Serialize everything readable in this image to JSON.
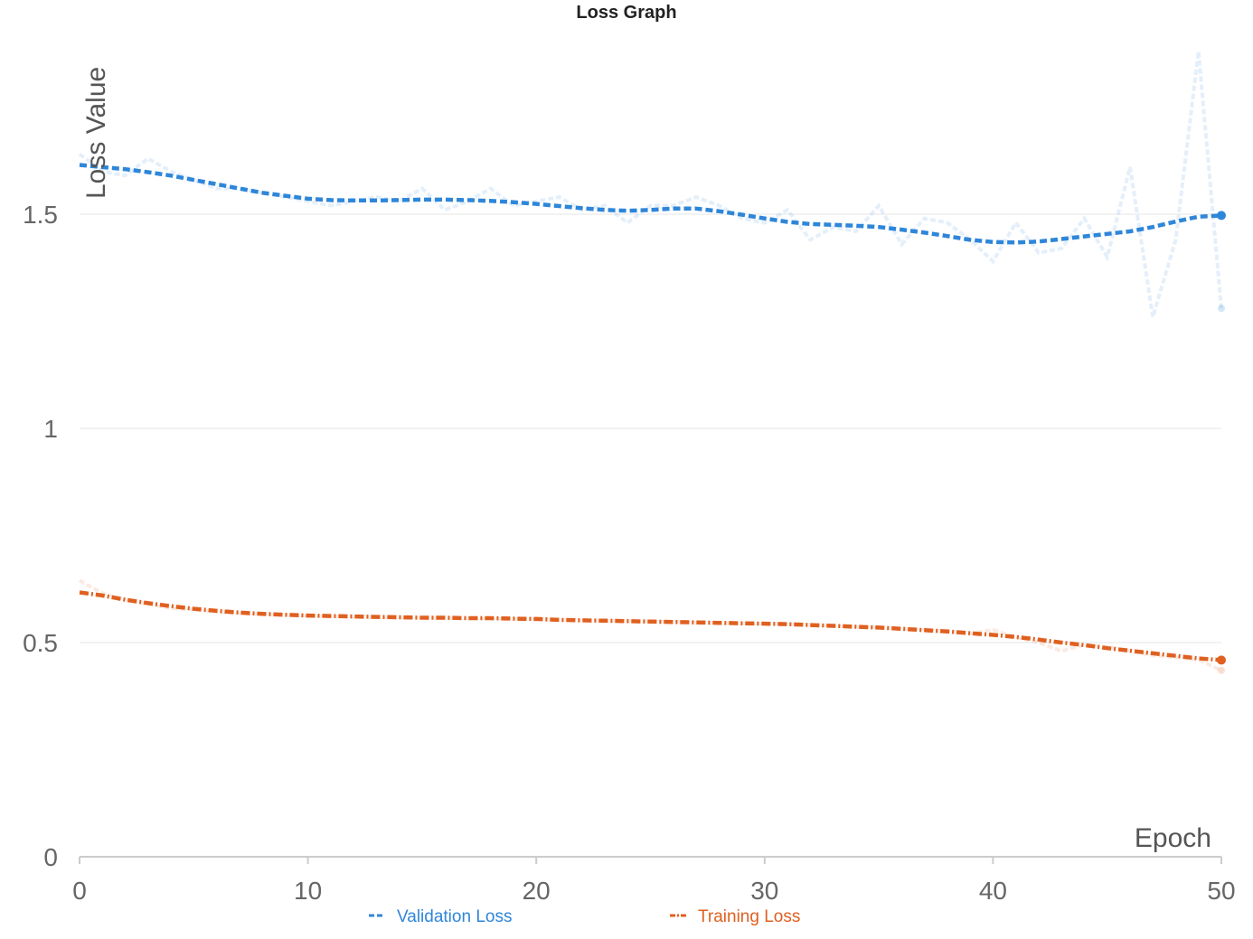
{
  "chart_data": {
    "type": "line",
    "title": "Loss Graph",
    "xlabel": "Epoch",
    "ylabel": "Loss Value",
    "xlim": [
      0,
      50
    ],
    "ylim": [
      0,
      1.9
    ],
    "x_ticks": [
      "0",
      "10",
      "20",
      "30",
      "40",
      "50"
    ],
    "y_ticks": [
      "0",
      "0.5",
      "1",
      "1.5"
    ],
    "grid": "horizontal",
    "legend_position": "bottom",
    "x": [
      0,
      1,
      2,
      3,
      4,
      5,
      6,
      7,
      8,
      9,
      10,
      11,
      12,
      13,
      14,
      15,
      16,
      17,
      18,
      19,
      20,
      21,
      22,
      23,
      24,
      25,
      26,
      27,
      28,
      29,
      30,
      31,
      32,
      33,
      34,
      35,
      36,
      37,
      38,
      39,
      40,
      41,
      42,
      43,
      44,
      45,
      46,
      47,
      48,
      49,
      50
    ],
    "series": [
      {
        "name": "Validation Loss",
        "color": "#2e86d9",
        "line_style": "dashed",
        "smoothed": [
          1.615,
          1.61,
          1.605,
          1.598,
          1.59,
          1.58,
          1.57,
          1.56,
          1.55,
          1.543,
          1.536,
          1.533,
          1.532,
          1.532,
          1.533,
          1.534,
          1.534,
          1.533,
          1.531,
          1.528,
          1.524,
          1.519,
          1.514,
          1.51,
          1.508,
          1.51,
          1.513,
          1.513,
          1.507,
          1.499,
          1.49,
          1.482,
          1.477,
          1.475,
          1.473,
          1.47,
          1.464,
          1.457,
          1.449,
          1.44,
          1.435,
          1.434,
          1.436,
          1.442,
          1.448,
          1.454,
          1.46,
          1.47,
          1.483,
          1.494,
          1.497
        ],
        "raw": [
          1.64,
          1.6,
          1.59,
          1.63,
          1.6,
          1.58,
          1.56,
          1.56,
          1.55,
          1.54,
          1.53,
          1.52,
          1.53,
          1.54,
          1.53,
          1.56,
          1.51,
          1.53,
          1.56,
          1.52,
          1.53,
          1.54,
          1.51,
          1.52,
          1.48,
          1.52,
          1.52,
          1.54,
          1.52,
          1.49,
          1.48,
          1.51,
          1.44,
          1.47,
          1.46,
          1.52,
          1.43,
          1.49,
          1.48,
          1.44,
          1.39,
          1.48,
          1.41,
          1.42,
          1.49,
          1.4,
          1.61,
          1.26,
          1.44,
          1.88,
          1.28
        ]
      },
      {
        "name": "Training Loss",
        "color": "#e06020",
        "line_style": "dash-dot",
        "smoothed": [
          0.617,
          0.61,
          0.6,
          0.592,
          0.585,
          0.579,
          0.574,
          0.57,
          0.567,
          0.565,
          0.563,
          0.562,
          0.561,
          0.56,
          0.559,
          0.558,
          0.558,
          0.557,
          0.557,
          0.556,
          0.555,
          0.553,
          0.552,
          0.551,
          0.55,
          0.549,
          0.548,
          0.547,
          0.546,
          0.545,
          0.544,
          0.543,
          0.541,
          0.539,
          0.537,
          0.535,
          0.532,
          0.529,
          0.526,
          0.522,
          0.518,
          0.513,
          0.507,
          0.5,
          0.494,
          0.487,
          0.481,
          0.475,
          0.469,
          0.463,
          0.459
        ],
        "raw": [
          0.645,
          0.615,
          0.6,
          0.59,
          0.58,
          0.577,
          0.572,
          0.568,
          0.566,
          0.564,
          0.562,
          0.561,
          0.56,
          0.559,
          0.558,
          0.558,
          0.557,
          0.557,
          0.556,
          0.555,
          0.554,
          0.553,
          0.552,
          0.551,
          0.55,
          0.549,
          0.548,
          0.547,
          0.546,
          0.545,
          0.544,
          0.543,
          0.541,
          0.539,
          0.537,
          0.535,
          0.532,
          0.53,
          0.527,
          0.52,
          0.53,
          0.512,
          0.5,
          0.48,
          0.495,
          0.49,
          0.48,
          0.47,
          0.465,
          0.46,
          0.435
        ]
      }
    ]
  }
}
